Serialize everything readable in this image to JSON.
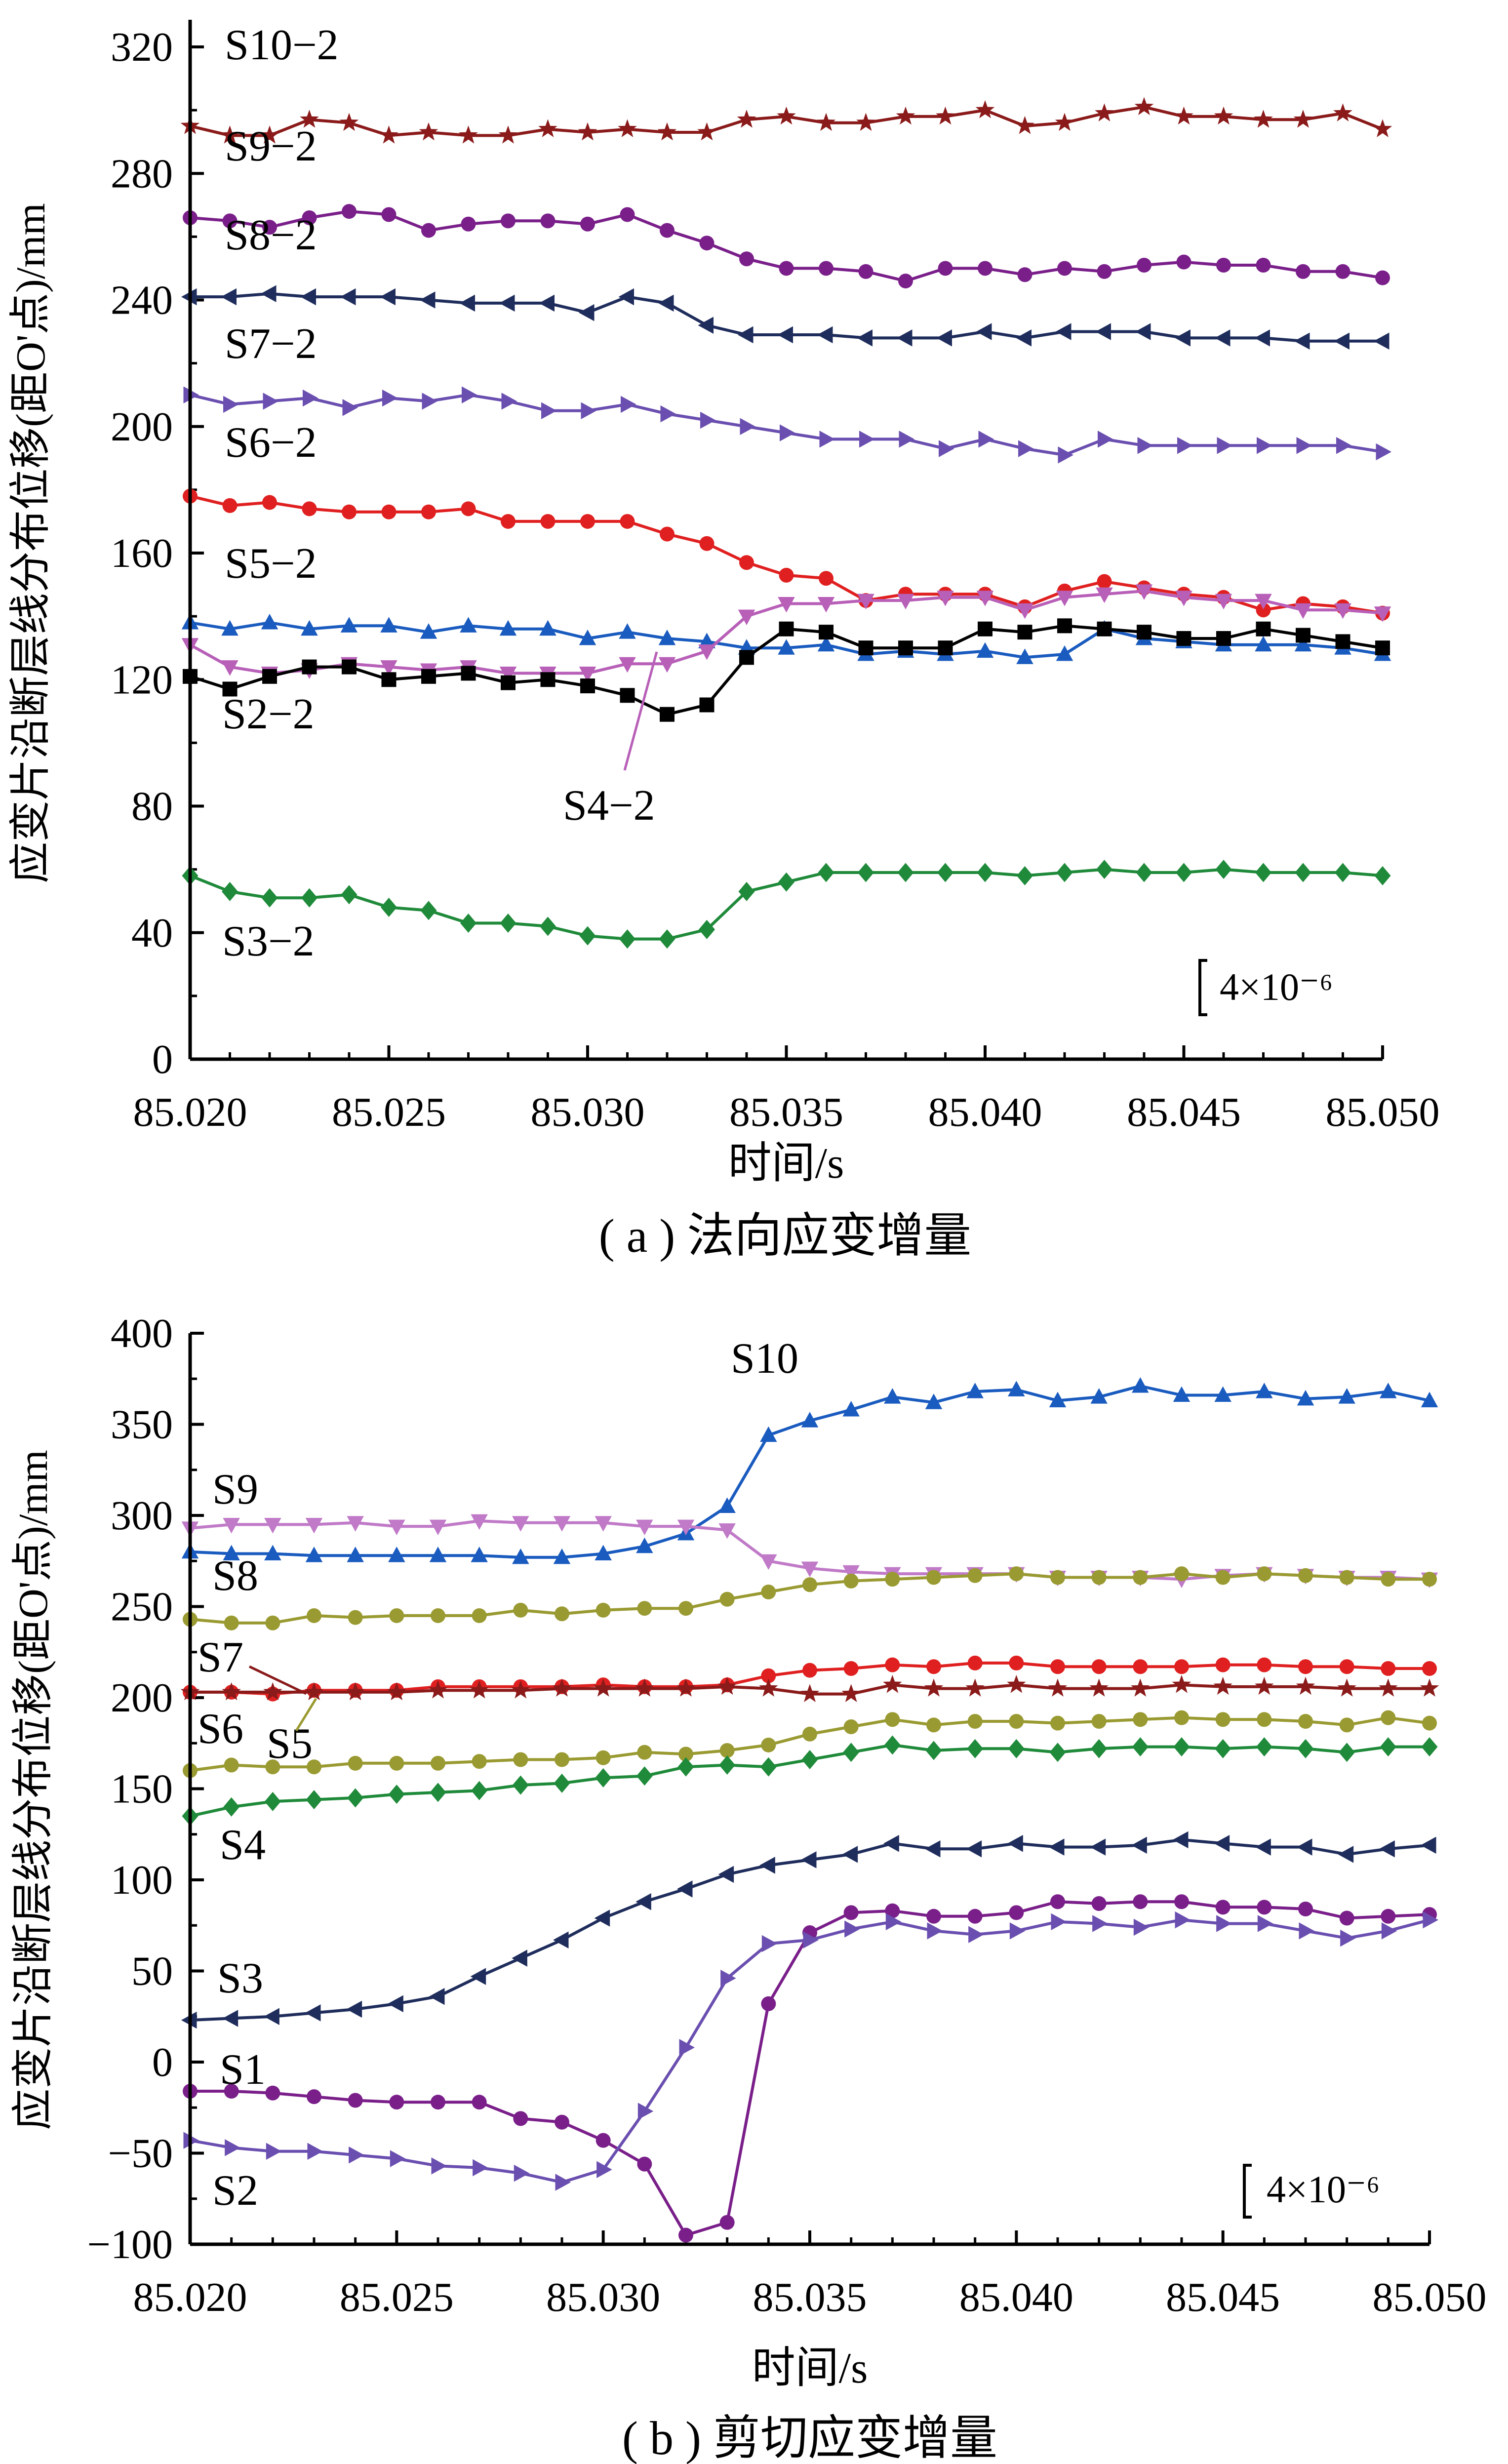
{
  "chart_data": [
    {
      "type": "line",
      "caption": "( a ) 法向应变增量",
      "ylabel": "应变片沿断层线分布位移(距O'点)/mm",
      "xlabel": "时间/s",
      "scale_label": "4×10⁻⁶",
      "xlim": [
        85.02,
        85.05
      ],
      "ylim": [
        0,
        320
      ],
      "xticks": [
        "85.020",
        "85.025",
        "85.030",
        "85.035",
        "85.040",
        "85.045",
        "85.050"
      ],
      "yticks": [
        "0",
        "40",
        "80",
        "120",
        "160",
        "200",
        "240",
        "280",
        "320"
      ],
      "x": [
        85.02,
        85.021,
        85.022,
        85.023,
        85.024,
        85.025,
        85.026,
        85.027,
        85.028,
        85.029,
        85.03,
        85.031,
        85.032,
        85.033,
        85.034,
        85.035,
        85.036,
        85.037,
        85.038,
        85.039,
        85.04,
        85.041,
        85.042,
        85.043,
        85.044,
        85.045,
        85.046,
        85.047,
        85.048,
        85.049,
        85.05
      ],
      "series": [
        {
          "name": "S10−2",
          "color": "#8b1a1a",
          "marker": "star",
          "values": [
            295,
            292,
            292,
            297,
            296,
            292,
            293,
            292,
            292,
            294,
            293,
            294,
            293,
            293,
            297,
            298,
            296,
            296,
            298,
            298,
            300,
            295,
            296,
            299,
            301,
            298,
            298,
            297,
            297,
            299,
            294
          ]
        },
        {
          "name": "S9−2",
          "color": "#7a1f8a",
          "marker": "circle",
          "values": [
            266,
            265,
            263,
            266,
            268,
            267,
            262,
            264,
            265,
            265,
            264,
            267,
            262,
            258,
            253,
            250,
            250,
            249,
            246,
            250,
            250,
            248,
            250,
            249,
            251,
            252,
            251,
            251,
            249,
            249,
            247
          ]
        },
        {
          "name": "S8−2",
          "color": "#1f2d5c",
          "marker": "triangle-left",
          "values": [
            241,
            241,
            242,
            241,
            241,
            241,
            240,
            239,
            239,
            239,
            236,
            241,
            239,
            232,
            229,
            229,
            229,
            228,
            228,
            228,
            230,
            228,
            230,
            230,
            230,
            228,
            228,
            228,
            227,
            227,
            227
          ]
        },
        {
          "name": "S7−2",
          "color": "#6a4fb0",
          "marker": "triangle-right",
          "values": [
            210,
            207,
            208,
            209,
            206,
            209,
            208,
            210,
            208,
            205,
            205,
            207,
            204,
            202,
            200,
            198,
            196,
            196,
            196,
            193,
            196,
            193,
            191,
            196,
            194,
            194,
            194,
            194,
            194,
            194,
            192
          ]
        },
        {
          "name": "S6−2",
          "color": "#e02020",
          "marker": "circle",
          "values": [
            178,
            175,
            176,
            174,
            173,
            173,
            173,
            174,
            170,
            170,
            170,
            170,
            166,
            163,
            157,
            153,
            152,
            145,
            147,
            147,
            147,
            143,
            148,
            151,
            149,
            147,
            146,
            142,
            144,
            143,
            141
          ]
        },
        {
          "name": "S5−2",
          "color": "#1a5bbf",
          "marker": "triangle-up",
          "values": [
            138,
            136,
            138,
            136,
            137,
            137,
            135,
            137,
            136,
            136,
            133,
            135,
            133,
            132,
            130,
            130,
            131,
            128,
            129,
            128,
            129,
            127,
            128,
            136,
            133,
            132,
            131,
            131,
            131,
            130,
            128
          ]
        },
        {
          "name": "S4−2",
          "color": "#b85fb8",
          "marker": "triangle-down",
          "values": [
            131,
            124,
            122,
            123,
            125,
            124,
            123,
            124,
            122,
            122,
            122,
            125,
            125,
            129,
            140,
            144,
            144,
            145,
            145,
            146,
            146,
            142,
            146,
            147,
            148,
            146,
            145,
            145,
            142,
            142,
            141
          ]
        },
        {
          "name": "S2−2",
          "color": "#000000",
          "marker": "square",
          "values": [
            121,
            117,
            121,
            124,
            124,
            120,
            121,
            122,
            119,
            120,
            118,
            115,
            109,
            112,
            127,
            136,
            135,
            130,
            130,
            130,
            136,
            135,
            137,
            136,
            135,
            133,
            133,
            136,
            134,
            132,
            130
          ]
        },
        {
          "name": "S3−2",
          "color": "#1f8a3a",
          "marker": "diamond",
          "values": [
            58,
            53,
            51,
            51,
            52,
            48,
            47,
            43,
            43,
            42,
            39,
            38,
            38,
            41,
            53,
            56,
            59,
            59,
            59,
            59,
            59,
            58,
            59,
            60,
            59,
            59,
            60,
            59,
            59,
            59,
            58
          ]
        }
      ]
    },
    {
      "type": "line",
      "caption": "( b ) 剪切应变增量",
      "ylabel": "应变片沿断层线分布位移(距O'点)/mm",
      "xlabel": "时间/s",
      "scale_label": "4×10⁻⁶",
      "xlim": [
        85.02,
        85.05
      ],
      "ylim": [
        -100,
        400
      ],
      "xticks": [
        "85.020",
        "85.025",
        "85.030",
        "85.035",
        "85.040",
        "85.045",
        "85.050"
      ],
      "yticks": [
        "−100",
        "−50",
        "0",
        "50",
        "100",
        "150",
        "200",
        "250",
        "300",
        "350",
        "400"
      ],
      "x": [
        85.02,
        85.021,
        85.022,
        85.023,
        85.024,
        85.025,
        85.026,
        85.027,
        85.028,
        85.029,
        85.03,
        85.031,
        85.032,
        85.033,
        85.034,
        85.035,
        85.036,
        85.037,
        85.038,
        85.039,
        85.04,
        85.041,
        85.042,
        85.043,
        85.044,
        85.045,
        85.046,
        85.047,
        85.048,
        85.049,
        85.05
      ],
      "series": [
        {
          "name": "S10",
          "color": "#1a5bbf",
          "marker": "triangle-up",
          "values": [
            280,
            279,
            279,
            278,
            278,
            278,
            278,
            278,
            277,
            277,
            279,
            283,
            290,
            305,
            344,
            352,
            358,
            365,
            362,
            368,
            369,
            363,
            365,
            371,
            366,
            366,
            368,
            364,
            365,
            368,
            363
          ]
        },
        {
          "name": "S9",
          "color": "#c07ac8",
          "marker": "triangle-down",
          "values": [
            293,
            295,
            295,
            295,
            296,
            294,
            294,
            297,
            296,
            296,
            296,
            294,
            294,
            292,
            275,
            271,
            269,
            268,
            268,
            268,
            268,
            266,
            266,
            266,
            265,
            267,
            268,
            267,
            266,
            266,
            265
          ]
        },
        {
          "name": "S8",
          "color": "#9a9a32",
          "marker": "circle",
          "values": [
            243,
            241,
            241,
            245,
            244,
            245,
            245,
            245,
            248,
            246,
            248,
            249,
            249,
            254,
            258,
            262,
            264,
            265,
            266,
            267,
            268,
            266,
            266,
            266,
            268,
            266,
            268,
            267,
            266,
            265,
            265
          ]
        },
        {
          "name": "S7",
          "color": "#e02020",
          "marker": "circle",
          "values": [
            203,
            203,
            202,
            204,
            204,
            204,
            206,
            206,
            206,
            206,
            207,
            206,
            206,
            207,
            212,
            215,
            216,
            218,
            217,
            219,
            219,
            217,
            217,
            217,
            217,
            218,
            218,
            217,
            217,
            216,
            216
          ]
        },
        {
          "name": "S6",
          "color": "#8b1a1a",
          "marker": "star",
          "values": [
            203,
            203,
            203,
            203,
            203,
            203,
            204,
            204,
            204,
            205,
            205,
            205,
            205,
            206,
            205,
            202,
            202,
            207,
            205,
            205,
            207,
            205,
            205,
            205,
            207,
            206,
            206,
            206,
            205,
            205,
            205
          ]
        },
        {
          "name": "S5",
          "color": "#9a9a32",
          "marker": "circle",
          "values": [
            160,
            163,
            162,
            162,
            164,
            164,
            164,
            165,
            166,
            166,
            167,
            170,
            169,
            171,
            174,
            180,
            184,
            188,
            185,
            187,
            187,
            186,
            187,
            188,
            189,
            188,
            188,
            187,
            185,
            189,
            186
          ]
        },
        {
          "name": "S4",
          "color": "#1f8a3a",
          "marker": "diamond",
          "values": [
            135,
            140,
            143,
            144,
            145,
            147,
            148,
            149,
            152,
            153,
            156,
            157,
            162,
            163,
            162,
            166,
            170,
            174,
            171,
            172,
            172,
            170,
            172,
            173,
            173,
            172,
            173,
            172,
            170,
            173,
            173
          ]
        },
        {
          "name": "S3",
          "color": "#1f2d5c",
          "marker": "triangle-left",
          "values": [
            23,
            24,
            25,
            27,
            29,
            32,
            36,
            47,
            57,
            67,
            79,
            88,
            95,
            103,
            108,
            111,
            114,
            120,
            117,
            117,
            120,
            118,
            118,
            119,
            122,
            120,
            118,
            118,
            114,
            117,
            119
          ]
        },
        {
          "name": "S1",
          "color": "#7a1f8a",
          "marker": "circle",
          "values": [
            -16,
            -16,
            -17,
            -19,
            -21,
            -22,
            -22,
            -22,
            -31,
            -33,
            -43,
            -56,
            -95,
            -88,
            32,
            71,
            82,
            83,
            80,
            80,
            82,
            88,
            87,
            88,
            88,
            85,
            85,
            84,
            79,
            80,
            81
          ]
        },
        {
          "name": "S2",
          "color": "#6a4fb0",
          "marker": "triangle-right",
          "values": [
            -43,
            -47,
            -49,
            -49,
            -51,
            -53,
            -57,
            -58,
            -61,
            -66,
            -59,
            -27,
            8,
            46,
            65,
            67,
            73,
            77,
            72,
            70,
            72,
            77,
            76,
            74,
            78,
            76,
            76,
            72,
            68,
            72,
            78
          ]
        }
      ]
    }
  ]
}
